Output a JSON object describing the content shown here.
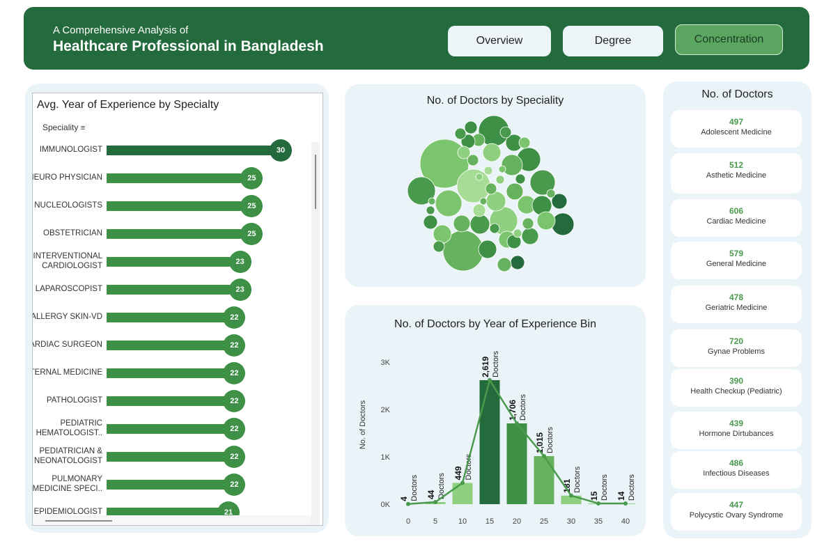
{
  "header": {
    "subtitle": "A Comprehensive Analysis of",
    "title": "Healthcare Professional in Bangladesh",
    "nav": [
      {
        "label": "Overview",
        "active": false
      },
      {
        "label": "Degree",
        "active": false
      },
      {
        "label": "Concentration",
        "active": true
      }
    ]
  },
  "experience_panel": {
    "title": "Avg. Year of Experience by Specialty",
    "column_header": "Speciality",
    "items": [
      {
        "label": "IMMUNOLOGIST",
        "value": 30
      },
      {
        "label": "NEURO PHYSICIAN",
        "value": 25
      },
      {
        "label": "NUCLEOLOGISTS",
        "value": 25
      },
      {
        "label": "OBSTETRICIAN",
        "value": 25
      },
      {
        "label": "INTERVENTIONAL CARDIOLOGIST",
        "value": 23
      },
      {
        "label": "LAPAROSCOPIST",
        "value": 23
      },
      {
        "label": "ALLERGY SKIN-VD",
        "value": 22
      },
      {
        "label": "CARDIAC SURGEON",
        "value": 22
      },
      {
        "label": "INTERNAL MEDICINE",
        "value": 22
      },
      {
        "label": "PATHOLOGIST",
        "value": 22
      },
      {
        "label": "PEDIATRIC HEMATOLOGIST..",
        "value": 22
      },
      {
        "label": "PEDIATRICIAN & NEONATOLOGIST",
        "value": 22
      },
      {
        "label": "PULMONARY MEDICINE SPECI..",
        "value": 22
      },
      {
        "label": "EPIDEMIOLOGIST",
        "value": 21
      }
    ]
  },
  "bubble_panel": {
    "title": "No. of Doctors by Speciality"
  },
  "chart_data": {
    "type": "bar",
    "title": "No. of Doctors by Year of Experience Bin",
    "xlabel": "",
    "ylabel": "No. of Doctors",
    "x": [
      0,
      5,
      10,
      15,
      20,
      25,
      30,
      35,
      40
    ],
    "values": [
      4,
      44,
      449,
      2619,
      1706,
      1015,
      181,
      15,
      14
    ],
    "value_labels": [
      "4",
      "44",
      "449",
      "2,619",
      "1,706",
      "1,015",
      "181",
      "15",
      "14"
    ],
    "series_label": "Doctors",
    "yticks": [
      "0K",
      "1K",
      "2K",
      "3K"
    ],
    "ylim": [
      0,
      3000
    ],
    "overlay": "line",
    "colors": {
      "dark": "#236b3d",
      "mid": "#3d9045",
      "light": "#67b25f",
      "pale": "#8ed07f"
    }
  },
  "doctors_panel": {
    "title": "No. of Doctors",
    "cards": [
      {
        "value": "497",
        "label": "Adolescent Medicine"
      },
      {
        "value": "512",
        "label": "Asthetic Medicine"
      },
      {
        "value": "606",
        "label": "Cardiac Medicine"
      },
      {
        "value": "579",
        "label": "General Medicine"
      },
      {
        "value": "478",
        "label": "Geriatric Medicine"
      },
      {
        "value": "720",
        "label": "Gynae Problems"
      },
      {
        "value": "390",
        "label": "Health Checkup (Pediatric)"
      },
      {
        "value": "439",
        "label": "Hormone Dirtubances"
      },
      {
        "value": "486",
        "label": "Infectious Diseases"
      },
      {
        "value": "447",
        "label": "Polycystic Ovary Syndrome"
      }
    ]
  }
}
